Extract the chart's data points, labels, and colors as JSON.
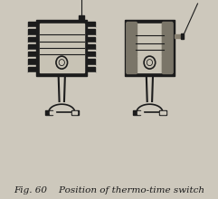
{
  "bg_color": "#cdc8bc",
  "piston_bg": "#c8c3b5",
  "dark": "#1c1c1c",
  "inner_bg": "#b8b3a5",
  "caption": "Fig. 60    Position of thermo-time switch",
  "caption_fontsize": 7.5
}
